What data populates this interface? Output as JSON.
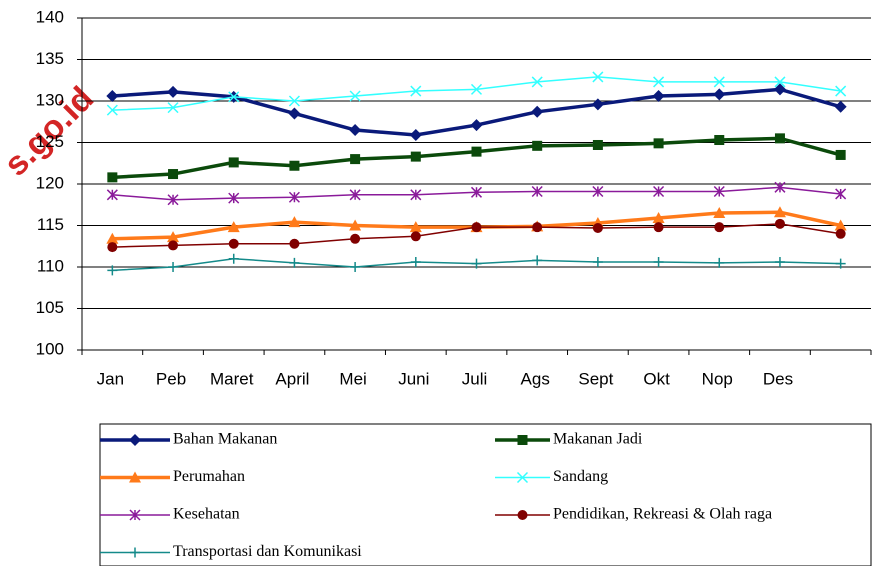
{
  "chart_data": {
    "type": "line",
    "watermark": "s.go.id",
    "categories": [
      "Jan",
      "Peb",
      "Maret",
      "April",
      "Mei",
      "Juni",
      "Juli",
      "Ags",
      "Sept",
      "Okt",
      "Nop",
      "Des",
      null
    ],
    "ylim": [
      100,
      140
    ],
    "yticks": [
      100,
      105,
      110,
      115,
      120,
      125,
      130,
      135,
      140
    ],
    "grid": true,
    "series": [
      {
        "name": "Bahan Makanan",
        "color": "#0a1a7a",
        "marker": "diamond",
        "values": [
          130.6,
          131.1,
          130.5,
          128.5,
          126.5,
          125.9,
          127.1,
          128.7,
          129.6,
          130.6,
          130.8,
          131.4,
          129.3
        ]
      },
      {
        "name": "Makanan Jadi",
        "color": "#0b4a0b",
        "marker": "square",
        "values": [
          120.8,
          121.2,
          122.6,
          122.2,
          123.0,
          123.3,
          123.9,
          124.6,
          124.7,
          124.9,
          125.3,
          125.5,
          123.5
        ]
      },
      {
        "name": "Perumahan",
        "color": "#ff7a1a",
        "marker": "triangle",
        "values": [
          113.4,
          113.6,
          114.8,
          115.4,
          115.0,
          114.8,
          114.8,
          114.9,
          115.3,
          115.9,
          116.5,
          116.6,
          115.0
        ]
      },
      {
        "name": "Sandang",
        "color": "#33ffff",
        "marker": "x",
        "values": [
          128.9,
          129.2,
          130.5,
          130.0,
          130.6,
          131.2,
          131.4,
          132.3,
          132.9,
          132.3,
          132.3,
          132.3,
          131.2
        ]
      },
      {
        "name": "Kesehatan",
        "color": "#8a1a9a",
        "marker": "star",
        "values": [
          118.7,
          118.1,
          118.3,
          118.4,
          118.7,
          118.7,
          119.0,
          119.1,
          119.1,
          119.1,
          119.1,
          119.6,
          118.8
        ]
      },
      {
        "name": "Pendidikan, Rekreasi & Olah raga",
        "color": "#800000",
        "marker": "circle",
        "values": [
          112.4,
          112.6,
          112.8,
          112.8,
          113.4,
          113.7,
          114.8,
          114.8,
          114.7,
          114.8,
          114.8,
          115.2,
          114.0
        ]
      },
      {
        "name": "Transportasi dan Komunikasi",
        "color": "#148a8a",
        "marker": "plus",
        "values": [
          109.6,
          110.0,
          111.0,
          110.5,
          110.0,
          110.6,
          110.4,
          110.8,
          110.6,
          110.6,
          110.5,
          110.6,
          110.4
        ]
      }
    ]
  }
}
